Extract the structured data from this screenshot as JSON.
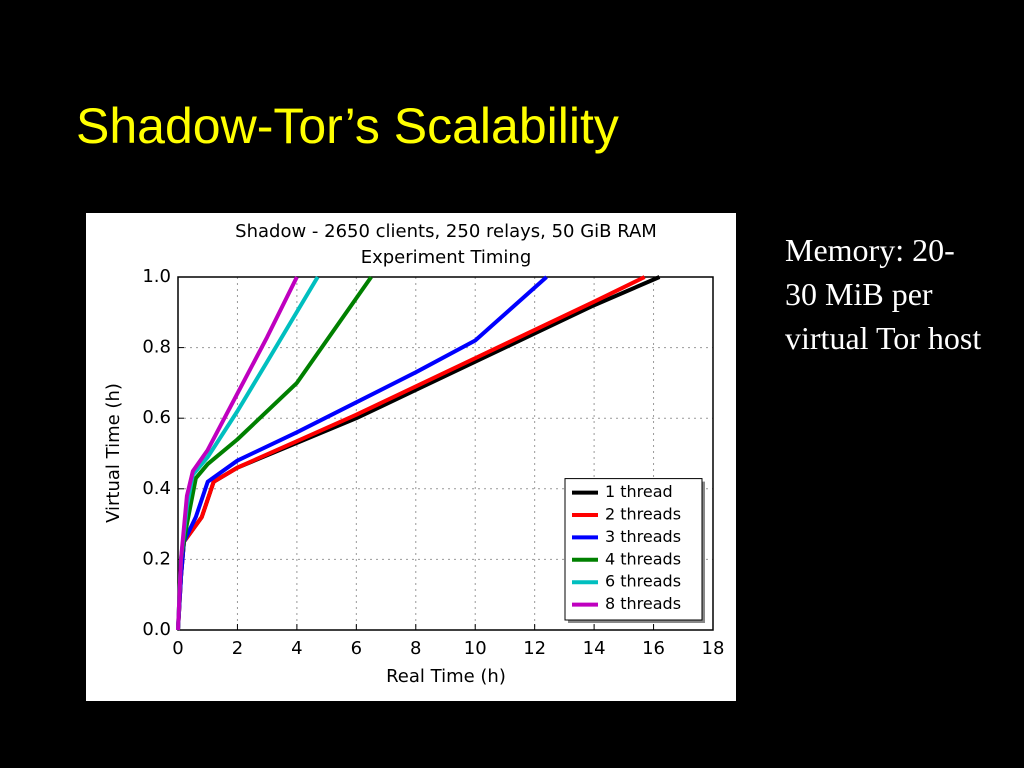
{
  "slide_title": "Shadow-Tor’s Scalability",
  "side_text": "Memory: 20-30 MiB per virtual Tor host",
  "chart_data": {
    "type": "line",
    "title": "Shadow - 2650 clients, 250 relays, 50 GiB RAM",
    "subtitle": "Experiment Timing",
    "x_label": "Real Time (h)",
    "y_label": "Virtual Time (h)",
    "xlim": [
      0,
      18
    ],
    "xticks": [
      0,
      2,
      4,
      6,
      8,
      10,
      12,
      14,
      16,
      18
    ],
    "ylim": [
      0,
      1
    ],
    "yticks": [
      {
        "value": 0,
        "label": "0.0"
      },
      0.2,
      0.4,
      0.6,
      0.8,
      {
        "value": 1,
        "label": "1.0"
      }
    ],
    "grid": true,
    "legend": "lower right",
    "series": [
      {
        "name": "1 thread",
        "color": "#000000",
        "x": [
          0,
          0.1,
          0.2,
          0.8,
          1.2,
          2,
          4,
          6,
          8,
          10,
          12,
          14,
          16.2
        ],
        "values": [
          0,
          0.15,
          0.25,
          0.32,
          0.42,
          0.46,
          0.53,
          0.6,
          0.68,
          0.76,
          0.84,
          0.92,
          1.0
        ]
      },
      {
        "name": "2 threads",
        "color": "#ff0000",
        "x": [
          0,
          0.1,
          0.2,
          0.8,
          1.2,
          2,
          4,
          6,
          8,
          10,
          12,
          14,
          15.7
        ],
        "values": [
          0,
          0.15,
          0.25,
          0.32,
          0.42,
          0.46,
          0.535,
          0.61,
          0.69,
          0.77,
          0.85,
          0.93,
          1.0
        ]
      },
      {
        "name": "3 threads",
        "color": "#0000ff",
        "x": [
          0,
          0.1,
          0.2,
          0.6,
          1,
          2,
          4,
          6,
          8,
          10,
          12.4
        ],
        "values": [
          0,
          0.15,
          0.25,
          0.32,
          0.42,
          0.48,
          0.56,
          0.645,
          0.73,
          0.82,
          1.0
        ]
      },
      {
        "name": "4 threads",
        "color": "#008000",
        "x": [
          0,
          0.1,
          0.3,
          0.6,
          1,
          2,
          4,
          6.5
        ],
        "values": [
          0,
          0.2,
          0.3,
          0.43,
          0.47,
          0.54,
          0.7,
          1.0
        ]
      },
      {
        "name": "6 threads",
        "color": "#00bfbf",
        "x": [
          0,
          0.1,
          0.3,
          0.5,
          1,
          2,
          3,
          4.7
        ],
        "values": [
          0,
          0.2,
          0.35,
          0.44,
          0.49,
          0.62,
          0.76,
          1.0
        ]
      },
      {
        "name": "8 threads",
        "color": "#bf00bf",
        "x": [
          0,
          0.1,
          0.3,
          0.5,
          1,
          2,
          3,
          4
        ],
        "values": [
          0,
          0.2,
          0.38,
          0.45,
          0.51,
          0.67,
          0.83,
          1.0
        ]
      }
    ]
  }
}
